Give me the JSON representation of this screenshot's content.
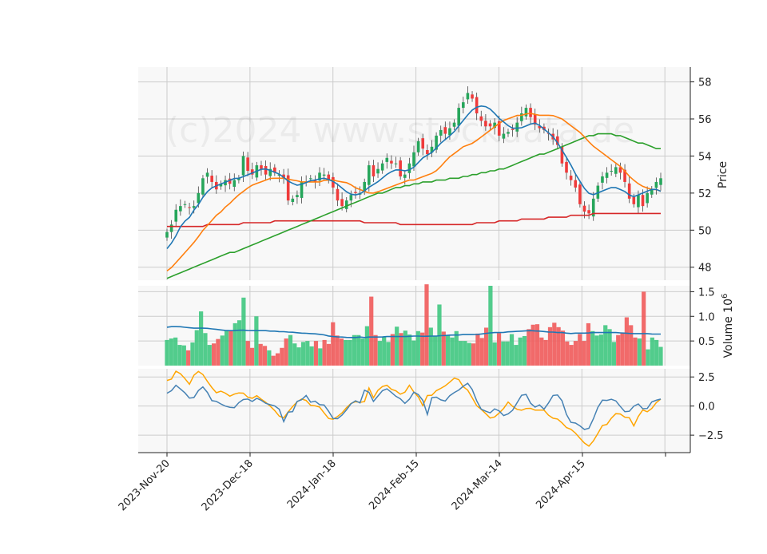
{
  "chart_data": {
    "type": "candlestick",
    "watermark": "(c)2024 www.stockdata.de",
    "x_tick_labels": [
      "2023-Nov-20",
      "2023-Dec-18",
      "2024-Jan-18",
      "2024-Feb-15",
      "2024-Mar-14",
      "2024-Apr-15"
    ],
    "colors": {
      "up": "#26a65b",
      "down": "#ef3b3b",
      "up_volume": "#3fc77f",
      "down_volume": "#f05a5a",
      "sma_fast": "#1f77b4",
      "sma_mid": "#ff7f0e",
      "sma_slow": "#2ca02c",
      "sma_long": "#d62728",
      "osc_1": "#4682b4",
      "osc_2": "#ffa500"
    },
    "price_panel": {
      "ylabel": "Price",
      "ylim": [
        47.3,
        58.8
      ],
      "yticks": [
        48,
        50,
        52,
        54,
        56,
        58
      ],
      "close": [
        49.9,
        50.3,
        51.1,
        51.3,
        51.4,
        51.2,
        51.3,
        52.0,
        52.8,
        53.1,
        52.6,
        52.2,
        52.5,
        52.7,
        52.5,
        52.7,
        52.8,
        54.0,
        53.2,
        53.0,
        53.5,
        53.3,
        53.0,
        53.3,
        53.1,
        53.0,
        52.8,
        51.6,
        51.7,
        51.9,
        52.6,
        52.6,
        52.8,
        52.6,
        53.1,
        53.0,
        52.7,
        52.3,
        51.6,
        51.3,
        51.6,
        51.9,
        52.0,
        52.0,
        52.6,
        53.5,
        52.9,
        53.3,
        53.6,
        53.9,
        53.6,
        53.6,
        52.9,
        53.0,
        53.6,
        54.2,
        54.8,
        54.4,
        54.1,
        54.5,
        55.1,
        55.4,
        55.2,
        55.5,
        55.8,
        56.6,
        56.9,
        57.4,
        57.1,
        56.3,
        55.9,
        55.6,
        55.6,
        55.8,
        55.1,
        55.2,
        55.3,
        55.4,
        55.8,
        56.3,
        56.6,
        56.1,
        55.7,
        55.5,
        55.4,
        55.2,
        54.9,
        54.6,
        53.6,
        53.1,
        52.7,
        52.3,
        51.4,
        51.0,
        50.9,
        51.7,
        52.4,
        52.9,
        53.1,
        53.2,
        53.4,
        53.1,
        52.6,
        51.7,
        51.4,
        51.9,
        51.3,
        52.0,
        52.2,
        52.6,
        52.8
      ],
      "sma_fast": [
        49.0,
        49.3,
        49.7,
        50.2,
        50.5,
        50.7,
        51.1,
        51.4,
        51.8,
        52.1,
        52.3,
        52.4,
        52.5,
        52.6,
        52.7,
        52.8,
        52.8,
        52.9,
        53.0,
        53.1,
        53.2,
        53.3,
        53.3,
        53.2,
        53.1,
        53.0,
        52.8,
        52.6,
        52.5,
        52.4,
        52.5,
        52.6,
        52.7,
        52.7,
        52.8,
        52.8,
        52.7,
        52.6,
        52.4,
        52.2,
        52.0,
        51.9,
        51.9,
        52.0,
        52.2,
        52.4,
        52.5,
        52.7,
        52.9,
        53.1,
        53.2,
        53.3,
        53.2,
        53.2,
        53.3,
        53.5,
        53.8,
        54.0,
        54.1,
        54.3,
        54.6,
        54.8,
        55.0,
        55.2,
        55.5,
        55.8,
        56.1,
        56.4,
        56.6,
        56.7,
        56.7,
        56.6,
        56.4,
        56.1,
        55.9,
        55.7,
        55.5,
        55.5,
        55.5,
        55.6,
        55.7,
        55.8,
        55.7,
        55.5,
        55.3,
        55.1,
        54.8,
        54.4,
        54.0,
        53.6,
        53.1,
        52.7,
        52.3,
        52.0,
        51.9,
        52.0,
        52.1,
        52.2,
        52.3,
        52.3,
        52.2,
        52.1,
        51.9,
        51.8,
        51.9,
        52.0,
        52.1,
        52.2,
        52.2,
        52.1
      ],
      "sma_mid": [
        47.8,
        48.0,
        48.3,
        48.6,
        48.9,
        49.2,
        49.5,
        49.9,
        50.2,
        50.5,
        50.8,
        51.0,
        51.3,
        51.5,
        51.8,
        52.0,
        52.2,
        52.4,
        52.5,
        52.6,
        52.7,
        52.8,
        52.8,
        52.8,
        52.8,
        52.7,
        52.7,
        52.6,
        52.6,
        52.6,
        52.6,
        52.6,
        52.7,
        52.7,
        52.7,
        52.6,
        52.6,
        52.5,
        52.3,
        52.2,
        52.1,
        52.0,
        52.0,
        52.1,
        52.2,
        52.3,
        52.4,
        52.5,
        52.6,
        52.7,
        52.7,
        52.8,
        52.9,
        53.0,
        53.1,
        53.3,
        53.6,
        53.9,
        54.1,
        54.3,
        54.5,
        54.6,
        54.7,
        54.9,
        55.1,
        55.3,
        55.5,
        55.7,
        55.9,
        56.0,
        56.1,
        56.2,
        56.2,
        56.3,
        56.3,
        56.2,
        56.2,
        56.2,
        56.2,
        56.1,
        56.0,
        55.8,
        55.6,
        55.4,
        55.2,
        54.9,
        54.6,
        54.4,
        54.2,
        54.0,
        53.8,
        53.6,
        53.4,
        53.1,
        52.8,
        52.6,
        52.4,
        52.3,
        52.2,
        52.2,
        52.1
      ],
      "sma_slow": [
        47.4,
        47.5,
        47.6,
        47.7,
        47.8,
        47.9,
        48.0,
        48.1,
        48.2,
        48.3,
        48.4,
        48.5,
        48.6,
        48.7,
        48.8,
        48.8,
        48.9,
        49.0,
        49.1,
        49.2,
        49.3,
        49.4,
        49.5,
        49.6,
        49.7,
        49.8,
        49.9,
        50.0,
        50.1,
        50.2,
        50.3,
        50.4,
        50.5,
        50.6,
        50.7,
        50.8,
        50.9,
        51.0,
        51.1,
        51.2,
        51.3,
        51.4,
        51.5,
        51.6,
        51.7,
        51.8,
        51.9,
        52.0,
        52.0,
        52.1,
        52.2,
        52.3,
        52.3,
        52.4,
        52.4,
        52.5,
        52.5,
        52.6,
        52.6,
        52.6,
        52.7,
        52.7,
        52.7,
        52.8,
        52.8,
        52.8,
        52.9,
        52.9,
        53.0,
        53.0,
        53.1,
        53.1,
        53.2,
        53.2,
        53.3,
        53.3,
        53.4,
        53.5,
        53.6,
        53.7,
        53.8,
        53.9,
        54.0,
        54.1,
        54.1,
        54.2,
        54.3,
        54.4,
        54.5,
        54.6,
        54.7,
        54.8,
        54.9,
        55.0,
        55.1,
        55.1,
        55.2,
        55.2,
        55.2,
        55.2,
        55.1,
        55.1,
        55.0,
        54.9,
        54.8,
        54.7,
        54.7,
        54.6,
        54.5,
        54.4,
        54.4
      ],
      "sma_long": [
        50.2,
        50.2,
        50.2,
        50.2,
        50.2,
        50.2,
        50.2,
        50.2,
        50.2,
        50.3,
        50.3,
        50.3,
        50.3,
        50.3,
        50.3,
        50.3,
        50.3,
        50.4,
        50.4,
        50.4,
        50.4,
        50.4,
        50.4,
        50.4,
        50.5,
        50.5,
        50.5,
        50.5,
        50.5,
        50.5,
        50.5,
        50.5,
        50.5,
        50.5,
        50.5,
        50.5,
        50.5,
        50.5,
        50.5,
        50.5,
        50.5,
        50.5,
        50.5,
        50.5,
        50.4,
        50.4,
        50.4,
        50.4,
        50.4,
        50.4,
        50.4,
        50.4,
        50.3,
        50.3,
        50.3,
        50.3,
        50.3,
        50.3,
        50.3,
        50.3,
        50.3,
        50.3,
        50.3,
        50.3,
        50.3,
        50.3,
        50.3,
        50.3,
        50.3,
        50.4,
        50.4,
        50.4,
        50.4,
        50.4,
        50.5,
        50.5,
        50.5,
        50.5,
        50.5,
        50.6,
        50.6,
        50.6,
        50.6,
        50.6,
        50.6,
        50.7,
        50.7,
        50.7,
        50.7,
        50.7,
        50.8,
        50.8,
        50.8,
        50.8,
        50.8,
        50.9,
        50.9,
        50.9,
        50.9,
        50.9,
        50.9,
        50.9,
        50.9,
        50.9,
        50.9,
        50.9,
        50.9,
        50.9,
        50.9,
        50.9,
        50.9
      ]
    },
    "volume_panel": {
      "ylabel": "Volume  10",
      "ylabel_exponent": "6",
      "ylim": [
        0,
        1.62
      ],
      "yticks": [
        "0.5",
        "1.0",
        "1.5"
      ],
      "volume": [
        0.52,
        0.55,
        0.57,
        0.42,
        0.41,
        0.31,
        0.47,
        0.72,
        1.1,
        0.66,
        0.42,
        0.45,
        0.54,
        0.61,
        0.72,
        0.7,
        0.86,
        0.92,
        1.38,
        0.5,
        0.36,
        1.0,
        0.44,
        0.4,
        0.31,
        0.2,
        0.25,
        0.36,
        0.55,
        0.62,
        0.45,
        0.37,
        0.48,
        0.5,
        0.39,
        0.5,
        0.35,
        0.52,
        0.44,
        0.88,
        0.61,
        0.55,
        0.52,
        0.52,
        0.62,
        0.62,
        0.55,
        0.8,
        1.4,
        0.62,
        0.5,
        0.58,
        0.48,
        0.64,
        0.79,
        0.66,
        0.71,
        0.63,
        0.51,
        0.7,
        0.67,
        1.65,
        0.77,
        0.6,
        1.24,
        0.69,
        0.62,
        0.57,
        0.7,
        0.5,
        0.5,
        0.46,
        0.45,
        0.65,
        0.56,
        0.77,
        1.62,
        0.47,
        0.66,
        0.49,
        0.49,
        0.64,
        0.42,
        0.57,
        0.6,
        0.74,
        0.83,
        0.84,
        0.57,
        0.52,
        0.78,
        0.87,
        0.78,
        0.71,
        0.49,
        0.42,
        0.5,
        0.64,
        0.5,
        0.86,
        0.7,
        0.61,
        0.63,
        0.82,
        0.74,
        0.48,
        0.62,
        0.67,
        0.98,
        0.82,
        0.57,
        0.55,
        1.5,
        0.33,
        0.57,
        0.52,
        0.38
      ],
      "volume_ma": [
        0.78,
        0.79,
        0.79,
        0.79,
        0.78,
        0.77,
        0.76,
        0.76,
        0.76,
        0.76,
        0.75,
        0.74,
        0.73,
        0.72,
        0.71,
        0.71,
        0.71,
        0.72,
        0.72,
        0.71,
        0.71,
        0.71,
        0.71,
        0.71,
        0.7,
        0.7,
        0.69,
        0.69,
        0.68,
        0.68,
        0.67,
        0.66,
        0.66,
        0.65,
        0.65,
        0.64,
        0.63,
        0.62,
        0.59,
        0.59,
        0.58,
        0.58,
        0.57,
        0.57,
        0.57,
        0.58,
        0.57,
        0.58,
        0.58,
        0.58,
        0.58,
        0.59,
        0.59,
        0.59,
        0.59,
        0.59,
        0.59,
        0.6,
        0.6,
        0.6,
        0.59,
        0.6,
        0.6,
        0.6,
        0.61,
        0.61,
        0.62,
        0.62,
        0.62,
        0.63,
        0.63,
        0.63,
        0.63,
        0.64,
        0.65,
        0.66,
        0.67,
        0.67,
        0.67,
        0.68,
        0.69,
        0.69,
        0.7,
        0.7,
        0.71,
        0.71,
        0.7,
        0.7,
        0.69,
        0.68,
        0.68,
        0.67,
        0.67,
        0.66,
        0.65,
        0.66,
        0.66,
        0.66,
        0.66,
        0.67,
        0.67,
        0.67,
        0.67,
        0.67,
        0.67,
        0.67,
        0.66,
        0.66,
        0.65,
        0.65,
        0.65,
        0.65,
        0.65,
        0.64,
        0.64,
        0.64
      ]
    },
    "oscillator_panel": {
      "ylim": [
        -4.0,
        3.2
      ],
      "yticks": [
        "2.5",
        "0.0",
        "−2.5"
      ],
      "line_1": [
        1.1,
        1.3,
        1.8,
        1.5,
        1.2,
        0.7,
        0.6,
        1.2,
        1.7,
        1.5,
        0.5,
        0.4,
        0.4,
        -0.1,
        0.1,
        -0.3,
        0.0,
        0.5,
        0.6,
        0.6,
        0.3,
        0.8,
        0.4,
        0.2,
        0.1,
        0.0,
        -0.3,
        -1.4,
        -0.5,
        -0.5,
        0.4,
        0.5,
        1.0,
        0.3,
        0.5,
        0.1,
        0.2,
        -0.2,
        -1.0,
        -1.2,
        -0.9,
        -0.6,
        0.0,
        0.4,
        0.5,
        0.1,
        2.2,
        0.6,
        0.3,
        1.1,
        1.4,
        1.5,
        1.1,
        0.8,
        0.6,
        0.2,
        0.6,
        1.2,
        1.0,
        0.6,
        -0.9,
        0.7,
        0.8,
        0.6,
        0.3,
        0.8,
        1.1,
        1.3,
        1.5,
        2.0,
        1.9,
        0.9,
        0.0,
        -0.5,
        -0.4,
        -0.7,
        0.0,
        -0.6,
        -0.9,
        -0.6,
        -0.3,
        0.4,
        1.0,
        1.0,
        0.2,
        -0.1,
        0.1,
        -0.3,
        0.2,
        0.9,
        1.0,
        0.7,
        -0.5,
        -1.4,
        -1.4,
        -1.6,
        -1.9,
        -2.2,
        -1.5,
        -0.6,
        0.4,
        0.6,
        0.4,
        0.7,
        0.3,
        -0.2,
        -0.6,
        -0.4,
        0.1,
        0.2,
        -0.3,
        -0.2,
        0.4,
        0.5,
        0.6
      ],
      "line_2": [
        2.2,
        2.3,
        3.0,
        2.8,
        2.4,
        1.8,
        2.6,
        3.0,
        2.8,
        2.2,
        1.7,
        1.1,
        1.3,
        1.2,
        0.8,
        1.0,
        1.1,
        1.2,
        0.9,
        0.5,
        1.0,
        0.7,
        0.4,
        0.2,
        -0.3,
        -0.5,
        -1.3,
        -0.7,
        -0.3,
        0.2,
        0.5,
        0.7,
        0.3,
        -0.1,
        0.1,
        -0.2,
        -0.8,
        -1.2,
        -1.1,
        -0.8,
        -0.5,
        0.0,
        0.3,
        0.4,
        0.3,
        0.4,
        1.8,
        0.5,
        1.5,
        1.7,
        1.8,
        1.4,
        1.3,
        1.0,
        1.2,
        1.8,
        1.2,
        0.8,
        0.0,
        0.9,
        0.9,
        1.3,
        1.5,
        1.7,
        2.0,
        2.4,
        2.4,
        1.7,
        1.5,
        0.9,
        0.1,
        -0.2,
        -0.5,
        -1.0,
        -1.1,
        -0.6,
        -0.6,
        0.5,
        0.1,
        -0.2,
        -0.4,
        -0.3,
        -0.1,
        -0.3,
        -0.4,
        -0.3,
        -0.4,
        -1.1,
        -1.0,
        -1.2,
        -1.6,
        -2.0,
        -2.0,
        -2.5,
        -2.9,
        -3.3,
        -3.5,
        -2.8,
        -2.2,
        -1.5,
        -1.6,
        -0.9,
        -0.6,
        -0.7,
        -1.0,
        -1.0,
        -1.8,
        -0.8,
        -0.3,
        -0.5,
        -0.2,
        0.3,
        0.6
      ]
    }
  }
}
